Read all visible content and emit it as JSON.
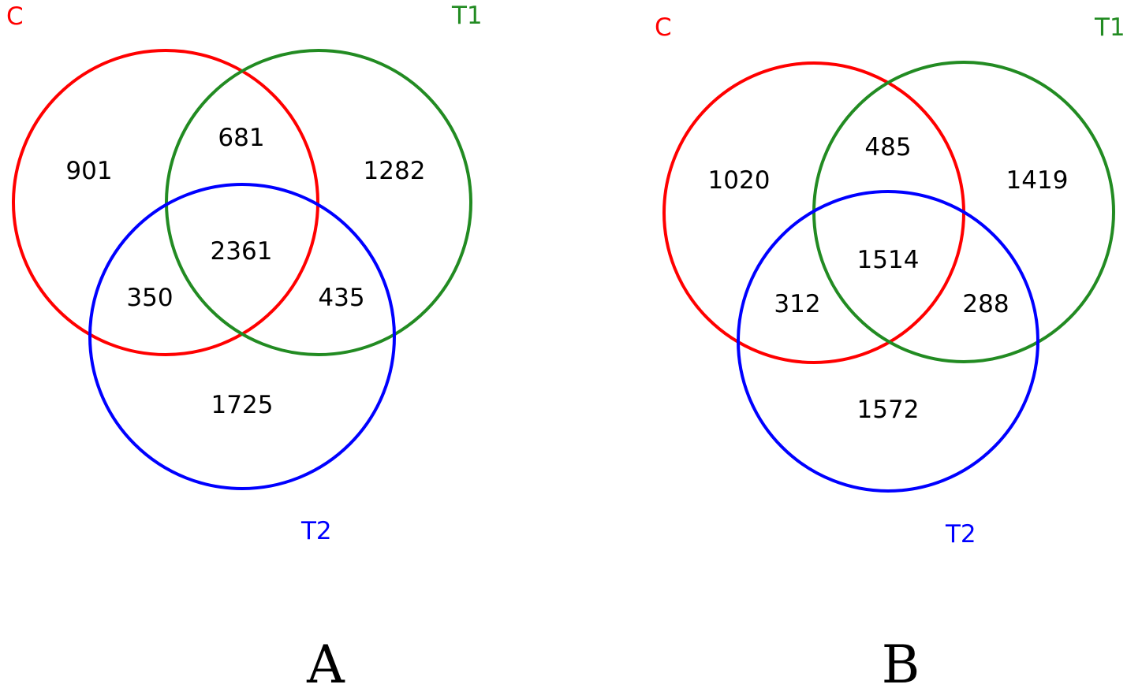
{
  "colors": {
    "C": "#ff0000",
    "T1": "#228b22",
    "T2": "#0000ff"
  },
  "panels": [
    {
      "label": "A",
      "sets": {
        "C": "C",
        "T1": "T1",
        "T2": "T2"
      },
      "counts": {
        "c_only": "901",
        "c_t1": "681",
        "t1_only": "1282",
        "all": "2361",
        "c_t2": "350",
        "t1_t2": "435",
        "t2_only": "1725"
      }
    },
    {
      "label": "B",
      "sets": {
        "C": "C",
        "T1": "T1",
        "T2": "T2"
      },
      "counts": {
        "c_only": "1020",
        "c_t1": "485",
        "t1_only": "1419",
        "all": "1514",
        "c_t2": "312",
        "t1_t2": "288",
        "t2_only": "1572"
      }
    }
  ]
}
